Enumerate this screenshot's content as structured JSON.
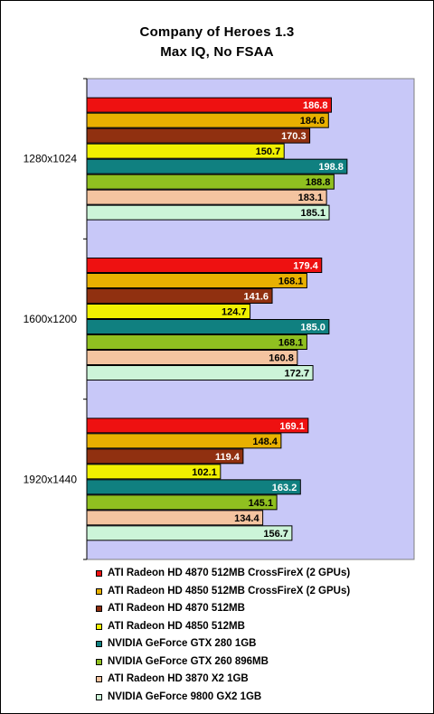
{
  "chart_data": {
    "type": "bar",
    "orientation": "horizontal",
    "title": "Company of Heroes 1.3",
    "subtitle": "Max IQ, No FSAA",
    "categories": [
      "1280x1024",
      "1600x1200",
      "1920x1440"
    ],
    "xlim": [
      0,
      250
    ],
    "plot_background": "#C8C8F8",
    "grid": false,
    "legend_position": "bottom",
    "series": [
      {
        "name": "ATI Radeon HD 4870 512MB CrossFireX (2 GPUs)",
        "color": "#EE1111",
        "label_color": "#FFFFFF",
        "values": [
          186.8,
          179.4,
          169.1
        ],
        "labels": [
          "186.8",
          "179.4",
          "169.1"
        ]
      },
      {
        "name": "ATI Radeon HD 4850 512MB CrossFireX (2 GPUs)",
        "color": "#E8B000",
        "label_color": "#000000",
        "values": [
          184.6,
          168.1,
          148.4
        ],
        "labels": [
          "184.6",
          "168.1",
          "148.4"
        ]
      },
      {
        "name": "ATI Radeon HD 4870 512MB",
        "color": "#903010",
        "label_color": "#FFFFFF",
        "values": [
          170.3,
          141.6,
          119.4
        ],
        "labels": [
          "170.3",
          "141.6",
          "119.4"
        ]
      },
      {
        "name": "ATI Radeon HD 4850 512MB",
        "color": "#F0F000",
        "label_color": "#000000",
        "values": [
          150.7,
          124.7,
          102.1
        ],
        "labels": [
          "150.7",
          "124.7",
          "102.1"
        ]
      },
      {
        "name": "NVIDIA GeForce GTX 280 1GB",
        "color": "#108080",
        "label_color": "#FFFFFF",
        "values": [
          198.8,
          185.0,
          163.2
        ],
        "labels": [
          "198.8",
          "185.0",
          "163.2"
        ]
      },
      {
        "name": "NVIDIA GeForce GTX 260 896MB",
        "color": "#90C020",
        "label_color": "#000000",
        "values": [
          188.8,
          168.1,
          145.1
        ],
        "labels": [
          "188.8",
          "168.1",
          "145.1"
        ]
      },
      {
        "name": "ATI  Radeon HD 3870 X2 1GB",
        "color": "#F4C4A0",
        "label_color": "#000000",
        "values": [
          183.1,
          160.8,
          134.4
        ],
        "labels": [
          "183.1",
          "160.8",
          "134.4"
        ]
      },
      {
        "name": "NVIDIA GeForce 9800 GX2 1GB",
        "color": "#CCF4D8",
        "label_color": "#000000",
        "values": [
          185.1,
          172.7,
          156.7
        ],
        "labels": [
          "185.1",
          "172.7",
          "156.7"
        ]
      }
    ]
  }
}
